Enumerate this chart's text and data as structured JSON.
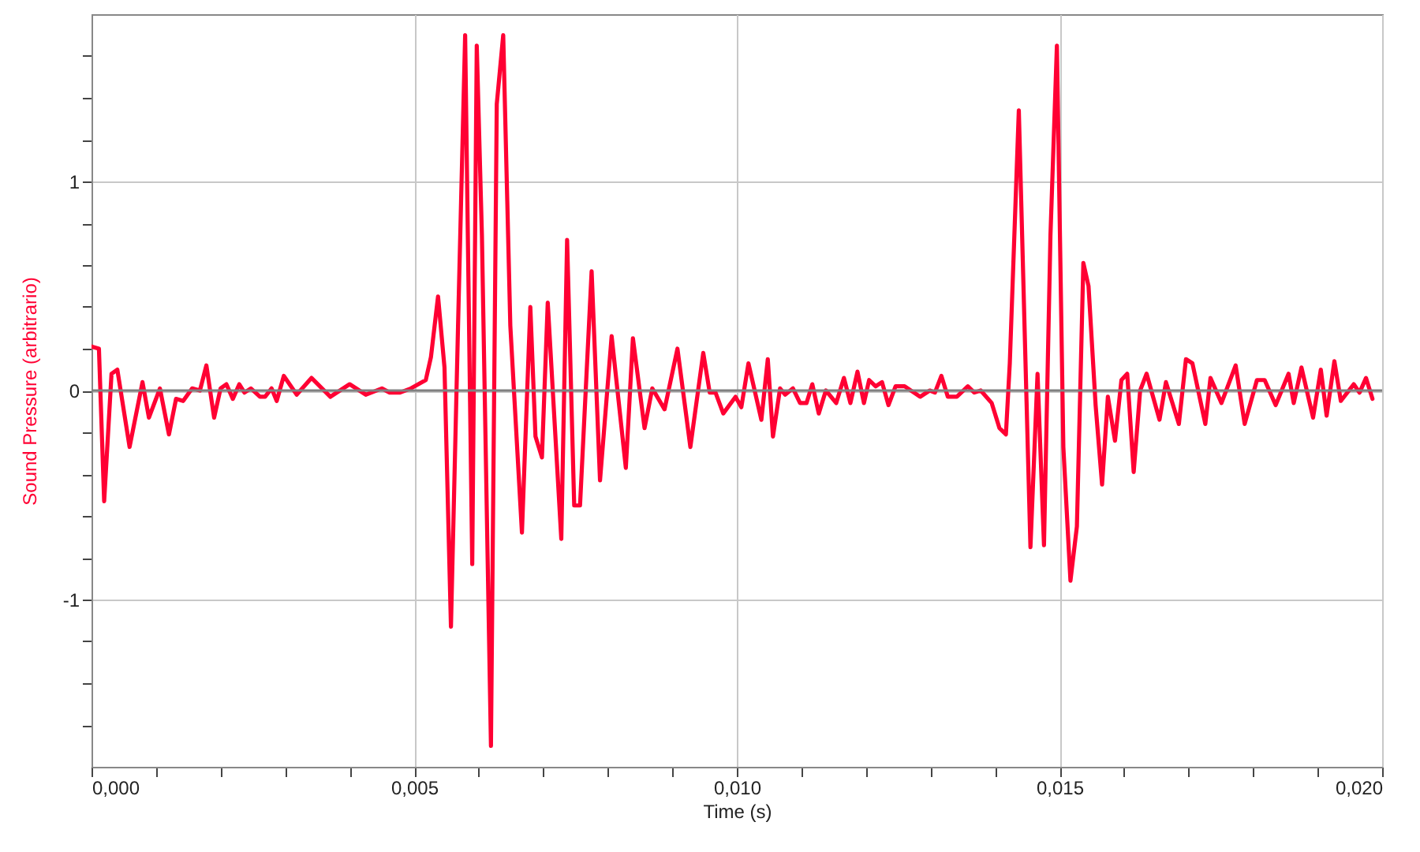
{
  "chart_data": {
    "type": "line",
    "xlabel": "Time (s)",
    "ylabel": "Sound Pressure (arbitrario)",
    "xlim": [
      0,
      0.02
    ],
    "ylim": [
      -1.8,
      1.8
    ],
    "xticks": [
      {
        "value": 0,
        "label": "0,000"
      },
      {
        "value": 0.001,
        "label": null
      },
      {
        "value": 0.002,
        "label": null
      },
      {
        "value": 0.003,
        "label": null
      },
      {
        "value": 0.004,
        "label": null
      },
      {
        "value": 0.005,
        "label": "0,005"
      },
      {
        "value": 0.006,
        "label": null
      },
      {
        "value": 0.007,
        "label": null
      },
      {
        "value": 0.008,
        "label": null
      },
      {
        "value": 0.009,
        "label": null
      },
      {
        "value": 0.01,
        "label": "0,010"
      },
      {
        "value": 0.011,
        "label": null
      },
      {
        "value": 0.012,
        "label": null
      },
      {
        "value": 0.013,
        "label": null
      },
      {
        "value": 0.014,
        "label": null
      },
      {
        "value": 0.015,
        "label": "0,015"
      },
      {
        "value": 0.016,
        "label": null
      },
      {
        "value": 0.017,
        "label": null
      },
      {
        "value": 0.018,
        "label": null
      },
      {
        "value": 0.019,
        "label": null
      },
      {
        "value": 0.02,
        "label": "0,020"
      }
    ],
    "yticks": [
      {
        "value": -1.6,
        "label": null
      },
      {
        "value": -1.4,
        "label": null
      },
      {
        "value": -1.2,
        "label": null
      },
      -1,
      {
        "value": -0.8,
        "label": null
      },
      {
        "value": -0.6,
        "label": null
      },
      {
        "value": -0.4,
        "label": null
      },
      {
        "value": -0.2,
        "label": null
      },
      0,
      {
        "value": 0.2,
        "label": null
      },
      {
        "value": 0.4,
        "label": null
      },
      {
        "value": 0.6,
        "label": null
      },
      {
        "value": 0.8,
        "label": null
      },
      1,
      {
        "value": 1.2,
        "label": null
      },
      {
        "value": 1.4,
        "label": null
      },
      {
        "value": 1.6,
        "label": null
      }
    ],
    "grid": true,
    "ref_lines": [
      {
        "axis": "y",
        "value": 0,
        "color": "#808080"
      }
    ],
    "series": [
      {
        "color": "#ff0033",
        "x": [
          0,
          0.000115,
          0.000196,
          0.00031,
          0.0004,
          0.00059,
          0.00079,
          0.00089,
          0.00106,
          0.0012,
          0.00131,
          0.00142,
          0.00156,
          0.00168,
          0.00178,
          0.0019,
          0.002,
          0.00209,
          0.00219,
          0.00229,
          0.00237,
          0.00247,
          0.00261,
          0.00269,
          0.00279,
          0.00287,
          0.00298,
          0.00318,
          0.00341,
          0.0037,
          0.004,
          0.00425,
          0.0045,
          0.00462,
          0.00478,
          0.00495,
          0.00518,
          0.00526,
          0.00537,
          0.00547,
          0.00557,
          0.00568,
          0.00579,
          0.0059,
          0.00597,
          0.00605,
          0.00619,
          0.00628,
          0.00638,
          0.00649,
          0.00667,
          0.0068,
          0.00688,
          0.00698,
          0.00707,
          0.00728,
          0.00737,
          0.00748,
          0.00757,
          0.00775,
          0.00788,
          0.00806,
          0.00828,
          0.00839,
          0.00857,
          0.00869,
          0.00888,
          0.00908,
          0.00928,
          0.00948,
          0.00958,
          0.00967,
          0.00979,
          0.00998,
          0.01007,
          0.01018,
          0.01038,
          0.01048,
          0.01056,
          0.01067,
          0.01075,
          0.01087,
          0.01098,
          0.01108,
          0.01117,
          0.01127,
          0.01138,
          0.01154,
          0.01166,
          0.01176,
          0.01187,
          0.01197,
          0.01205,
          0.01215,
          0.01225,
          0.01235,
          0.01246,
          0.0126,
          0.01284,
          0.01299,
          0.01307,
          0.01317,
          0.01327,
          0.01341,
          0.01358,
          0.01368,
          0.01378,
          0.01395,
          0.01407,
          0.01417,
          0.01423,
          0.01437,
          0.01443,
          0.01455,
          0.01466,
          0.01476,
          0.01486,
          0.01496,
          0.01506,
          0.01517,
          0.01527,
          0.01537,
          0.01545,
          0.01556,
          0.01566,
          0.01575,
          0.01586,
          0.01596,
          0.01605,
          0.01615,
          0.01625,
          0.01635,
          0.01655,
          0.01665,
          0.01685,
          0.01696,
          0.01706,
          0.01726,
          0.01734,
          0.01751,
          0.01773,
          0.01787,
          0.01806,
          0.01818,
          0.01835,
          0.01855,
          0.01863,
          0.01875,
          0.01893,
          0.01905,
          0.01914,
          0.01926,
          0.01936,
          0.01956,
          0.01965,
          0.01975,
          0.01985
        ],
        "values": [
          0.21,
          0.2,
          -0.53,
          0.08,
          0.1,
          -0.27,
          0.04,
          -0.13,
          0.01,
          -0.21,
          -0.04,
          -0.05,
          0.01,
          0,
          0.12,
          -0.13,
          0.01,
          0.03,
          -0.04,
          0.03,
          -0.01,
          0.01,
          -0.03,
          -0.03,
          0.01,
          -0.05,
          0.07,
          -0.02,
          0.06,
          -0.03,
          0.03,
          -0.02,
          0.01,
          -0.01,
          -0.01,
          0.01,
          0.05,
          0.16,
          0.45,
          0.11,
          -1.13,
          0.31,
          1.7,
          -0.83,
          1.65,
          0.74,
          -1.7,
          1.37,
          1.7,
          0.31,
          -0.68,
          0.4,
          -0.22,
          -0.32,
          0.42,
          -0.71,
          0.72,
          -0.55,
          -0.55,
          0.57,
          -0.43,
          0.26,
          -0.37,
          0.25,
          -0.18,
          0.01,
          -0.09,
          0.2,
          -0.27,
          0.18,
          -0.01,
          -0.01,
          -0.11,
          -0.03,
          -0.08,
          0.13,
          -0.14,
          0.15,
          -0.22,
          0.01,
          -0.02,
          0.01,
          -0.06,
          -0.06,
          0.03,
          -0.11,
          0,
          -0.06,
          0.06,
          -0.06,
          0.09,
          -0.06,
          0.05,
          0.02,
          0.04,
          -0.07,
          0.02,
          0.02,
          -0.03,
          0,
          -0.01,
          0.07,
          -0.03,
          -0.03,
          0.02,
          -0.01,
          0,
          -0.06,
          -0.18,
          -0.21,
          0.13,
          1.34,
          0.64,
          -0.75,
          0.08,
          -0.74,
          0.74,
          1.65,
          -0.27,
          -0.91,
          -0.65,
          0.61,
          0.5,
          -0.07,
          -0.45,
          -0.03,
          -0.24,
          0.05,
          0.08,
          -0.39,
          0,
          0.08,
          -0.14,
          0.04,
          -0.16,
          0.15,
          0.13,
          -0.16,
          0.06,
          -0.06,
          0.12,
          -0.16,
          0.05,
          0.05,
          -0.07,
          0.08,
          -0.06,
          0.11,
          -0.13,
          0.1,
          -0.12,
          0.14,
          -0.05,
          0.03,
          -0.01,
          0.06,
          -0.04
        ]
      }
    ]
  }
}
